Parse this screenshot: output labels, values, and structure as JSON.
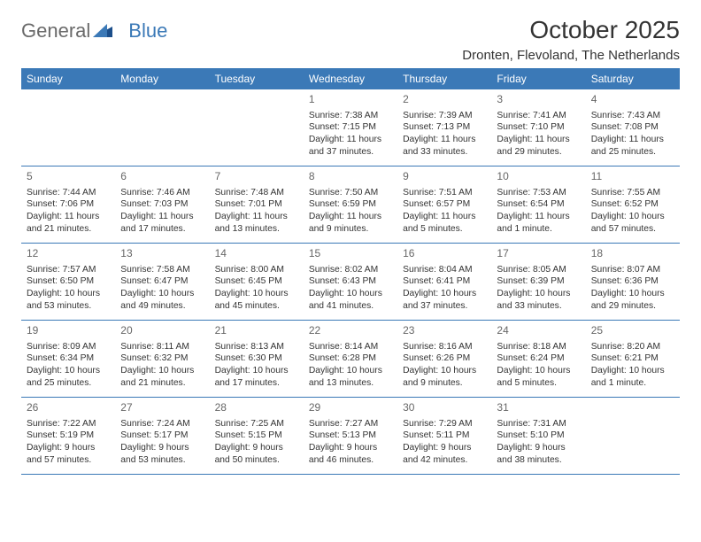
{
  "logo": {
    "text1": "General",
    "text2": "Blue"
  },
  "title": "October 2025",
  "location": "Dronten, Flevoland, The Netherlands",
  "colors": {
    "header_bg": "#3b79b7",
    "header_text": "#ffffff",
    "border": "#3b79b7",
    "text": "#333333",
    "daynum": "#666666",
    "logo_gray": "#6a6a6a",
    "logo_blue": "#3b79b7",
    "background": "#ffffff"
  },
  "dow": [
    "Sunday",
    "Monday",
    "Tuesday",
    "Wednesday",
    "Thursday",
    "Friday",
    "Saturday"
  ],
  "weeks": [
    [
      null,
      null,
      null,
      {
        "n": "1",
        "sr": "7:38 AM",
        "ss": "7:15 PM",
        "dl": "11 hours and 37 minutes."
      },
      {
        "n": "2",
        "sr": "7:39 AM",
        "ss": "7:13 PM",
        "dl": "11 hours and 33 minutes."
      },
      {
        "n": "3",
        "sr": "7:41 AM",
        "ss": "7:10 PM",
        "dl": "11 hours and 29 minutes."
      },
      {
        "n": "4",
        "sr": "7:43 AM",
        "ss": "7:08 PM",
        "dl": "11 hours and 25 minutes."
      }
    ],
    [
      {
        "n": "5",
        "sr": "7:44 AM",
        "ss": "7:06 PM",
        "dl": "11 hours and 21 minutes."
      },
      {
        "n": "6",
        "sr": "7:46 AM",
        "ss": "7:03 PM",
        "dl": "11 hours and 17 minutes."
      },
      {
        "n": "7",
        "sr": "7:48 AM",
        "ss": "7:01 PM",
        "dl": "11 hours and 13 minutes."
      },
      {
        "n": "8",
        "sr": "7:50 AM",
        "ss": "6:59 PM",
        "dl": "11 hours and 9 minutes."
      },
      {
        "n": "9",
        "sr": "7:51 AM",
        "ss": "6:57 PM",
        "dl": "11 hours and 5 minutes."
      },
      {
        "n": "10",
        "sr": "7:53 AM",
        "ss": "6:54 PM",
        "dl": "11 hours and 1 minute."
      },
      {
        "n": "11",
        "sr": "7:55 AM",
        "ss": "6:52 PM",
        "dl": "10 hours and 57 minutes."
      }
    ],
    [
      {
        "n": "12",
        "sr": "7:57 AM",
        "ss": "6:50 PM",
        "dl": "10 hours and 53 minutes."
      },
      {
        "n": "13",
        "sr": "7:58 AM",
        "ss": "6:47 PM",
        "dl": "10 hours and 49 minutes."
      },
      {
        "n": "14",
        "sr": "8:00 AM",
        "ss": "6:45 PM",
        "dl": "10 hours and 45 minutes."
      },
      {
        "n": "15",
        "sr": "8:02 AM",
        "ss": "6:43 PM",
        "dl": "10 hours and 41 minutes."
      },
      {
        "n": "16",
        "sr": "8:04 AM",
        "ss": "6:41 PM",
        "dl": "10 hours and 37 minutes."
      },
      {
        "n": "17",
        "sr": "8:05 AM",
        "ss": "6:39 PM",
        "dl": "10 hours and 33 minutes."
      },
      {
        "n": "18",
        "sr": "8:07 AM",
        "ss": "6:36 PM",
        "dl": "10 hours and 29 minutes."
      }
    ],
    [
      {
        "n": "19",
        "sr": "8:09 AM",
        "ss": "6:34 PM",
        "dl": "10 hours and 25 minutes."
      },
      {
        "n": "20",
        "sr": "8:11 AM",
        "ss": "6:32 PM",
        "dl": "10 hours and 21 minutes."
      },
      {
        "n": "21",
        "sr": "8:13 AM",
        "ss": "6:30 PM",
        "dl": "10 hours and 17 minutes."
      },
      {
        "n": "22",
        "sr": "8:14 AM",
        "ss": "6:28 PM",
        "dl": "10 hours and 13 minutes."
      },
      {
        "n": "23",
        "sr": "8:16 AM",
        "ss": "6:26 PM",
        "dl": "10 hours and 9 minutes."
      },
      {
        "n": "24",
        "sr": "8:18 AM",
        "ss": "6:24 PM",
        "dl": "10 hours and 5 minutes."
      },
      {
        "n": "25",
        "sr": "8:20 AM",
        "ss": "6:21 PM",
        "dl": "10 hours and 1 minute."
      }
    ],
    [
      {
        "n": "26",
        "sr": "7:22 AM",
        "ss": "5:19 PM",
        "dl": "9 hours and 57 minutes."
      },
      {
        "n": "27",
        "sr": "7:24 AM",
        "ss": "5:17 PM",
        "dl": "9 hours and 53 minutes."
      },
      {
        "n": "28",
        "sr": "7:25 AM",
        "ss": "5:15 PM",
        "dl": "9 hours and 50 minutes."
      },
      {
        "n": "29",
        "sr": "7:27 AM",
        "ss": "5:13 PM",
        "dl": "9 hours and 46 minutes."
      },
      {
        "n": "30",
        "sr": "7:29 AM",
        "ss": "5:11 PM",
        "dl": "9 hours and 42 minutes."
      },
      {
        "n": "31",
        "sr": "7:31 AM",
        "ss": "5:10 PM",
        "dl": "9 hours and 38 minutes."
      },
      null
    ]
  ],
  "labels": {
    "sunrise": "Sunrise: ",
    "sunset": "Sunset: ",
    "daylight": "Daylight: "
  }
}
